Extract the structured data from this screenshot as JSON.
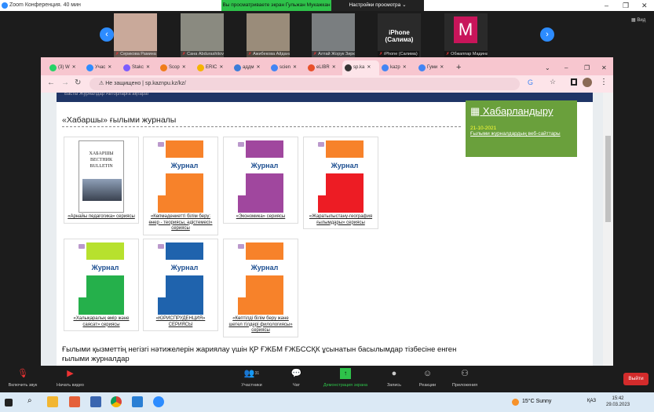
{
  "zoom": {
    "title": "Zoom Конференция. 40 мин",
    "share_banner": "Вы просматриваете экран Гульжан Мукажкан",
    "view_settings": "Настройки просмотра ⌄",
    "view_label": "Вид",
    "participants": [
      {
        "name": "Серикова Рамина",
        "color": "#c9a99a"
      },
      {
        "name": "Сана Abdurashitova",
        "color": "#8a8a80"
      },
      {
        "name": "Ажибекова Айдана",
        "color": "#9a8c7a"
      },
      {
        "name": "Алтай Жорук Зиркыналиев",
        "color": "#7a7e80"
      },
      {
        "name": "iPhone (Салима)",
        "big": "iPhone (Салима)",
        "color": "#2a2a2a"
      },
      {
        "name": "Обжаппар Мадина Бе...",
        "initial": "M",
        "color": "#c8155a"
      }
    ],
    "toolbar": {
      "audio": "Включить звук",
      "video": "Начать видео",
      "participants": "Участники",
      "participants_count": "31",
      "chat": "Чат",
      "share": "Демонстрация экрана",
      "record": "Запись",
      "reactions": "Реакции",
      "apps": "Приложения",
      "leave": "Выйти"
    }
  },
  "browser": {
    "tabs": [
      {
        "label": "(3) W",
        "color": "#25d366"
      },
      {
        "label": "Учас",
        "color": "#2d8cff"
      },
      {
        "label": "Stakс",
        "color": "#7b5cff"
      },
      {
        "label": "Scop",
        "color": "#f07d1a"
      },
      {
        "label": "ERIC",
        "color": "#f5b400"
      },
      {
        "label": "аддм",
        "color": "#3b7dd8"
      },
      {
        "label": "scien",
        "color": "#4285f4"
      },
      {
        "label": "eLIBR",
        "color": "#e8502a"
      },
      {
        "label": "sp.ka",
        "color": "#333",
        "active": true
      },
      {
        "label": "kazp",
        "color": "#4285f4"
      },
      {
        "label": "Гуми",
        "color": "#4285f4"
      }
    ],
    "security": "Не защищено",
    "url": "sp.kaznpu.kz/kz/",
    "topnav": "Басты     Журналдар     Авторларға ақпарат"
  },
  "page": {
    "section_title": "«Хабаршы» ғылыми журналы",
    "cover_word": "Журнал",
    "journals": [
      {
        "caption": "«Арнайы педагогика» сериясы",
        "top": "#ffffff",
        "body": "#ffffff",
        "bulletin": true
      },
      {
        "caption": "«Көпмәдениетті білім беру: өнер - теориясы, әдістемесі» сериясы",
        "top": "#f7822a",
        "body": "#f7822a"
      },
      {
        "caption": "«Экономика» сериясы",
        "top": "#a0479e",
        "body": "#a0479e"
      },
      {
        "caption": "«Жаратылыстану-география ғылымдары» сериясы",
        "top": "#f7822a",
        "body": "#ed1c24"
      },
      {
        "caption": "«Халықаралық өмір және саясат» сериясы",
        "top": "#b7e12e",
        "body": "#25b04b"
      },
      {
        "caption": "«ЮРИСПРУДЕНЦИЯ» СЕРИЯСЫ",
        "top": "#1f63ad",
        "body": "#1f63ad"
      },
      {
        "caption": "«Көптілді білім беру және шетел тілдері филологиясы» сериясы",
        "top": "#f7822a",
        "body": "#f7822a"
      }
    ],
    "bulletin_text": "ХАБАРШЫ ВЕСТНИК BULLETIN",
    "announcement": {
      "title": "Хабарландыру",
      "date": "21-10-2021",
      "link": "Ғылыми журналдардың веб-сайттары",
      "color": "#6aa03c"
    },
    "bottom_text": "Ғылыми қызметтің негізгі нәтижелерін жариялау үшін ҚР ҒЖБМ ҒЖБССҚК ұсынатын басылымдар тізбесіне енген ғылыми журналдар"
  },
  "taskbar": {
    "weather": "15°C  Sunny",
    "lang": "ҚАЗ",
    "time": "15:42",
    "date": "29.03.2023"
  }
}
